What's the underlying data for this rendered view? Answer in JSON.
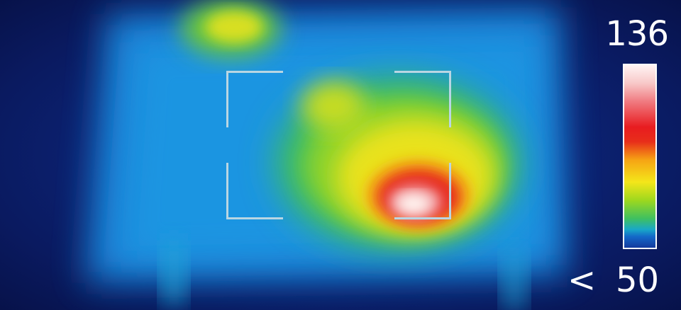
{
  "thermal_view": {
    "scale": {
      "max_label": "136",
      "min_prefix": "<",
      "min_label": "50",
      "palette": [
        "#143a9e",
        "#1468c8",
        "#19a8c8",
        "#3fc060",
        "#9ed81e",
        "#f4e61a",
        "#f6a414",
        "#e81c20",
        "#f07a80",
        "#fff4f4"
      ]
    }
  }
}
